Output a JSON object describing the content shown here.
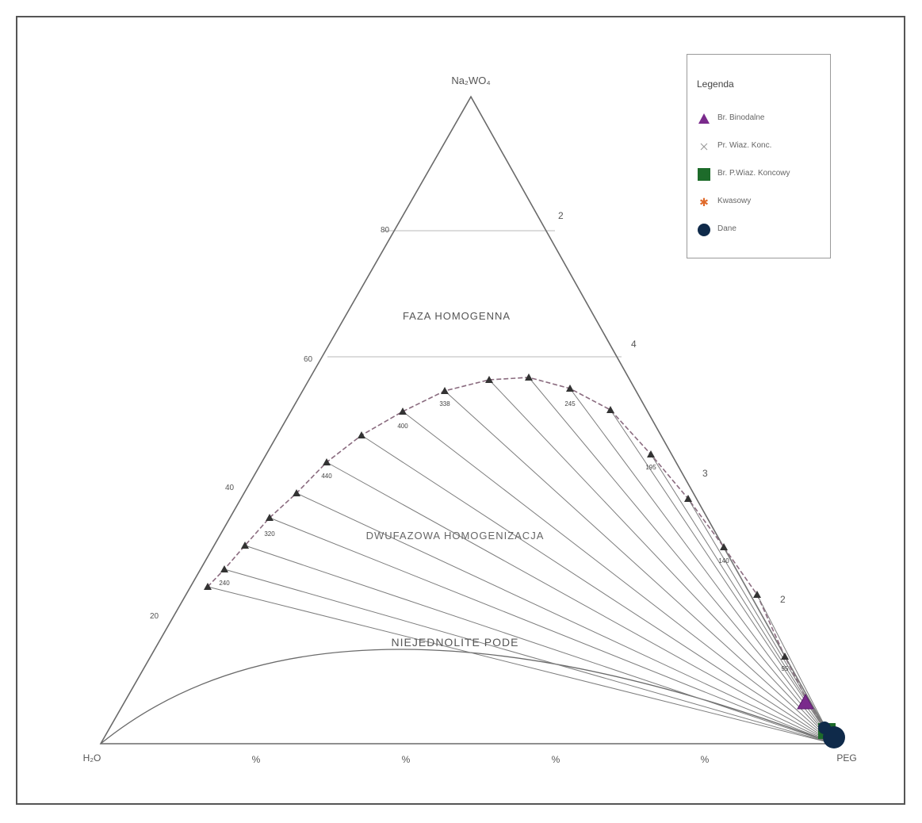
{
  "vertices": {
    "top": "Na₂WO₄",
    "left": "H₂O",
    "right": "PEG"
  },
  "regions": {
    "one_phase_upper": "FAZA HOMOGENNA",
    "two_phase": "DWUFAZOWA HOMOGENIZACJA",
    "unsuitable": "NIEJEDNOLITE PODE"
  },
  "legend": {
    "title": "Legenda",
    "items": [
      {
        "label": "Br. Binodalne",
        "icon": "triangle-marker",
        "color": "#7a2a8c"
      },
      {
        "label": "Pr. Wiaz. Konc.",
        "icon": "cross-marker",
        "color": "#999999"
      },
      {
        "label": "Br. P.Wiaz. Koncowy",
        "icon": "square-marker",
        "color": "#1d6b2a"
      },
      {
        "label": "Kwasowy",
        "icon": "star-marker",
        "color": "#e06a2a"
      },
      {
        "label": "Dane",
        "icon": "circle-marker",
        "color": "#0f2a4a"
      }
    ]
  },
  "side_ticks_left": [
    "80",
    "60",
    "40",
    "20"
  ],
  "side_ticks_right": [
    "2",
    "4",
    "3",
    "2"
  ],
  "bottom_ticks": [
    "%",
    "%",
    "%",
    "%"
  ],
  "point_labels": [
    "240",
    "320",
    "440",
    "400",
    "338",
    "245",
    "195",
    "140",
    "95"
  ],
  "colors": {
    "line": "#6a6a6a",
    "binodal_marker": "#333333",
    "accent_purple": "#7a2a8c",
    "accent_green": "#1d6b2a",
    "accent_navy": "#0f2a4a"
  }
}
